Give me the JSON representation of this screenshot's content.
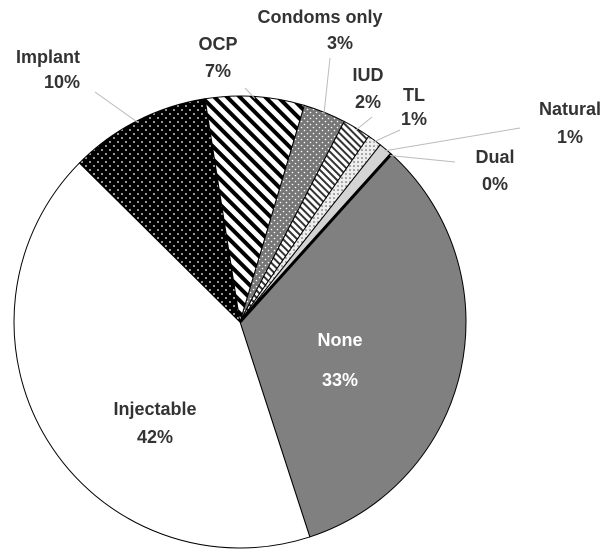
{
  "chart_data": {
    "type": "pie",
    "categories": [
      "None",
      "Injectable",
      "Implant",
      "OCP",
      "Condoms only",
      "IUD",
      "TL",
      "Natural",
      "Dual"
    ],
    "values": [
      33,
      42,
      10,
      7,
      3,
      2,
      1,
      1,
      0
    ],
    "value_labels": [
      "33%",
      "42%",
      "10%",
      "7%",
      "3%",
      "2%",
      "1%",
      "1%",
      "0%"
    ],
    "colors": [
      "#808080",
      "#ffffff",
      "url(#pat-implant)",
      "url(#pat-ocp)",
      "url(#pat-condoms)",
      "url(#pat-iud)",
      "url(#pat-tl)",
      "#d4d4d4",
      "#000000"
    ]
  }
}
